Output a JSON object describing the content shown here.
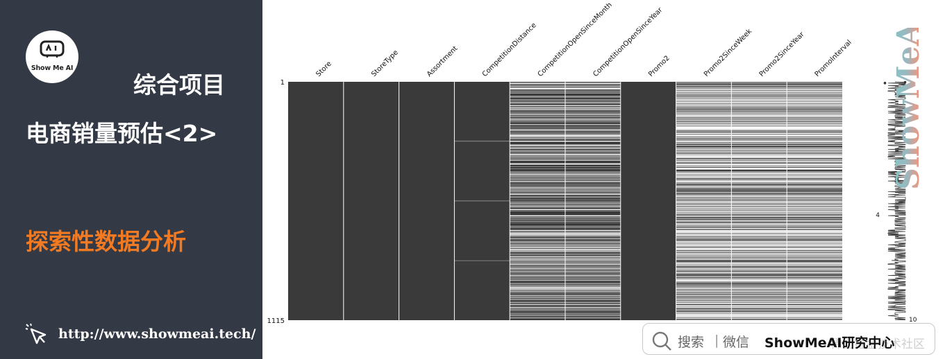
{
  "sidebar": {
    "logo_text": "Show Me AI",
    "category": "综合项目",
    "project_title": "电商销量预估<2>",
    "section": "探索性数据分析",
    "url": "http://www.showmeai.tech/",
    "colors": {
      "background": "#333a45",
      "accent": "#f27a22",
      "text": "#ffffff"
    },
    "icons": {
      "logo": "robot-icon",
      "url": "cursor-click-icon"
    }
  },
  "watermark": {
    "text": "ShowMeAI"
  },
  "footer": {
    "search": "搜索",
    "separator": "|",
    "wechat": "微信",
    "brand": "ShowMeAI研究中心",
    "ghost": "稀土掘金技术社区",
    "icons": {
      "search": "search-icon"
    }
  },
  "chart_data": {
    "type": "heatmap",
    "description_kind": "missing-value matrix",
    "columns": [
      "Store",
      "StoreType",
      "Assortment",
      "CompetitionDistance",
      "CompetitionOpenSinceMonth",
      "CompetitionOpenSinceYear",
      "Promo2",
      "Promo2SinceWeek",
      "Promo2SinceYear",
      "PromoInterval"
    ],
    "row_ticks": [
      "1",
      "1115"
    ],
    "row_count": 1115,
    "completeness_scale_ticks": [
      "4",
      "10"
    ],
    "present_fraction": [
      1.0,
      1.0,
      1.0,
      0.997,
      0.683,
      0.683,
      1.0,
      0.512,
      0.512,
      0.512
    ],
    "colors": {
      "present": "#3a3a3a",
      "missing": "#ffffff"
    }
  }
}
